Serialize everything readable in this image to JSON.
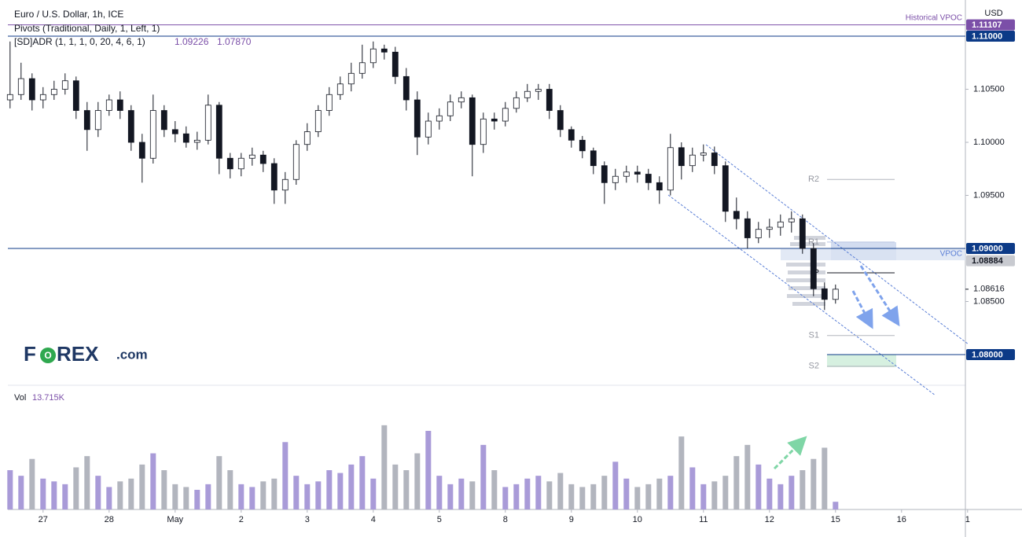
{
  "chart_data": {
    "type": "candlestick",
    "title": "Euro / U.S. Dollar, 1h, ICE",
    "indicators": [
      "Pivots (Traditional, Daily, 1, Left, 1)",
      "[SD]ADR (1, 1, 1, 0, 20, 4, 6, 1)"
    ],
    "adr_values": [
      {
        "value": 1.09226,
        "label": "1.09226"
      },
      {
        "value": 1.0787,
        "label": "1.07870"
      }
    ],
    "overlay_label": "Historical VPOC",
    "vpoc_label": "VPOC",
    "currency": "USD",
    "logo": [
      "F",
      "O",
      "REX",
      ".com"
    ],
    "ylim": [
      1.07711,
      1.11304
    ],
    "yticks": [
      {
        "value": 1.105,
        "label": "1.10500"
      },
      {
        "value": 1.1,
        "label": "1.10000"
      },
      {
        "value": 1.095,
        "label": "1.09500"
      },
      {
        "value": 1.085,
        "label": "1.08500"
      }
    ],
    "levels": [
      {
        "value": 1.11107,
        "label": "1.11107",
        "color": "#7b4fa8"
      },
      {
        "value": 1.11,
        "label": "1.11000",
        "color": "#0c3a87"
      },
      {
        "value": 1.09,
        "label": "1.09000",
        "color": "#0c3a87"
      },
      {
        "value": 1.08884,
        "label": "1.08884",
        "color": "#c8cad0"
      },
      {
        "value": 1.08,
        "label": "1.08000",
        "color": "#0c3a87"
      }
    ],
    "last_price": {
      "value": 1.08616,
      "label": "1.08616"
    },
    "pivots": [
      {
        "name": "R2",
        "value": 1.0965
      },
      {
        "name": "R1",
        "value": 1.0906
      },
      {
        "name": "P",
        "value": 1.0877
      },
      {
        "name": "S1",
        "value": 1.0818
      },
      {
        "name": "S2",
        "value": 1.0789
      }
    ],
    "xlim": [
      -0.2,
      86.8
    ],
    "xticks": [
      {
        "value": 3,
        "label": "27"
      },
      {
        "value": 9,
        "label": "28"
      },
      {
        "value": 15,
        "label": "May"
      },
      {
        "value": 21,
        "label": "2"
      },
      {
        "value": 27,
        "label": "3"
      },
      {
        "value": 33,
        "label": "4"
      },
      {
        "value": 39,
        "label": "5"
      },
      {
        "value": 45,
        "label": "8"
      },
      {
        "value": 51,
        "label": "9"
      },
      {
        "value": 57,
        "label": "10"
      },
      {
        "value": 63,
        "label": "11"
      },
      {
        "value": 69,
        "label": "12"
      },
      {
        "value": 75,
        "label": "15"
      },
      {
        "value": 81,
        "label": "16"
      },
      {
        "value": 87,
        "label": "1"
      }
    ],
    "colors": {
      "up": "#ffffff",
      "down": "#131722",
      "outline": "#131722",
      "volume_up": "#a99bd8",
      "volume_down": "#b2b5be"
    },
    "open": [
      1.104,
      1.1045,
      1.106,
      1.104,
      1.1045,
      1.105,
      1.1058,
      1.103,
      1.1012,
      1.103,
      1.104,
      1.103,
      1.1,
      1.0985,
      1.103,
      1.1012,
      1.1008,
      1.1,
      1.1002,
      1.1035,
      1.0985,
      1.0975,
      1.0985,
      1.0988,
      1.098,
      1.0955,
      1.0965,
      1.0998,
      1.101,
      1.103,
      1.1045,
      1.1055,
      1.1065,
      1.1075,
      1.1088,
      1.1085,
      1.1062,
      1.104,
      1.1005,
      1.102,
      1.1025,
      1.1038,
      1.1042,
      1.0998,
      1.1022,
      1.102,
      1.1032,
      1.1042,
      1.1048,
      1.105,
      1.103,
      1.1012,
      1.1002,
      1.0992,
      1.0978,
      1.0962,
      1.0968,
      1.0972,
      1.097,
      1.0962,
      1.0955,
      1.0995,
      1.0978,
      1.0988,
      1.099,
      1.0978,
      1.0935,
      1.0928,
      1.091,
      1.0918,
      1.092,
      1.0925,
      1.0928,
      1.09,
      1.0862,
      1.0852
    ],
    "high": [
      1.1095,
      1.1075,
      1.1065,
      1.1052,
      1.1058,
      1.1065,
      1.1062,
      1.1038,
      1.1038,
      1.1045,
      1.1048,
      1.1035,
      1.1008,
      1.1045,
      1.1035,
      1.102,
      1.1015,
      1.101,
      1.1045,
      1.1038,
      1.099,
      1.099,
      1.0995,
      1.0992,
      1.0985,
      1.0972,
      1.1002,
      1.1018,
      1.1035,
      1.1052,
      1.1062,
      1.1075,
      1.1092,
      1.1095,
      1.1092,
      1.109,
      1.107,
      1.1048,
      1.1028,
      1.1032,
      1.1045,
      1.1048,
      1.1045,
      1.1028,
      1.1028,
      1.1038,
      1.1048,
      1.1055,
      1.1055,
      1.1055,
      1.1035,
      1.1015,
      1.1006,
      1.0995,
      1.0982,
      1.0975,
      1.0978,
      1.0978,
      1.0975,
      1.0968,
      1.1008,
      1.1,
      1.0995,
      1.0998,
      1.0996,
      1.0982,
      1.0948,
      1.0935,
      1.0925,
      1.0928,
      1.0932,
      1.0935,
      1.0932,
      1.0905,
      1.0868,
      1.0866
    ],
    "low": [
      1.1032,
      1.104,
      1.103,
      1.1032,
      1.104,
      1.1045,
      1.1022,
      1.0992,
      1.1005,
      1.1025,
      1.1022,
      1.0992,
      1.0962,
      1.098,
      1.1005,
      1.1,
      1.0995,
      1.0993,
      1.0998,
      1.097,
      1.0966,
      1.0968,
      1.0978,
      1.0972,
      1.0942,
      1.0942,
      1.096,
      1.0992,
      1.1005,
      1.1025,
      1.104,
      1.1048,
      1.106,
      1.107,
      1.1078,
      1.1055,
      1.103,
      1.0988,
      1.0998,
      1.1012,
      1.102,
      1.1032,
      1.0968,
      1.099,
      1.1012,
      1.1015,
      1.1028,
      1.1038,
      1.104,
      1.1022,
      1.1005,
      1.0995,
      1.0985,
      1.097,
      1.0942,
      1.0955,
      1.0962,
      1.0962,
      1.0955,
      1.0942,
      1.095,
      1.0965,
      1.0972,
      1.0982,
      1.097,
      1.0925,
      1.0918,
      1.09,
      1.0905,
      1.091,
      1.0912,
      1.0915,
      1.0895,
      1.0855,
      1.0842,
      1.0848
    ],
    "close": [
      1.1045,
      1.106,
      1.104,
      1.1045,
      1.105,
      1.1058,
      1.103,
      1.1012,
      1.103,
      1.104,
      1.103,
      1.1,
      1.0985,
      1.103,
      1.1012,
      1.1008,
      1.1,
      1.1002,
      1.1035,
      1.0985,
      1.0975,
      1.0985,
      1.0988,
      1.098,
      1.0955,
      1.0965,
      1.0998,
      1.101,
      1.103,
      1.1045,
      1.1055,
      1.1065,
      1.1075,
      1.1088,
      1.1085,
      1.1062,
      1.104,
      1.1005,
      1.102,
      1.1025,
      1.1038,
      1.1042,
      1.0998,
      1.1022,
      1.102,
      1.1032,
      1.1042,
      1.1048,
      1.105,
      1.103,
      1.1012,
      1.1002,
      1.0992,
      1.0978,
      1.0962,
      1.0968,
      1.0972,
      1.097,
      1.0962,
      1.0955,
      1.0995,
      1.0978,
      1.0988,
      1.099,
      1.0978,
      1.0935,
      1.0928,
      1.091,
      1.0918,
      1.092,
      1.0925,
      1.0928,
      1.09,
      1.0862,
      1.0852,
      1.08616
    ],
    "volume": {
      "name": "Vol",
      "last": {
        "value": 13.715,
        "label": "13.715K"
      },
      "ylim": [
        0,
        210
      ],
      "values": [
        70,
        60,
        90,
        55,
        50,
        45,
        75,
        95,
        60,
        40,
        50,
        55,
        80,
        100,
        70,
        45,
        40,
        35,
        45,
        95,
        70,
        45,
        40,
        50,
        55,
        120,
        60,
        45,
        50,
        70,
        65,
        80,
        95,
        55,
        150,
        80,
        70,
        100,
        140,
        60,
        45,
        55,
        50,
        115,
        70,
        40,
        45,
        55,
        60,
        50,
        65,
        45,
        40,
        45,
        60,
        85,
        55,
        40,
        45,
        55,
        60,
        130,
        75,
        45,
        50,
        60,
        95,
        115,
        80,
        55,
        45,
        60,
        70,
        90,
        110,
        13.715
      ]
    }
  }
}
